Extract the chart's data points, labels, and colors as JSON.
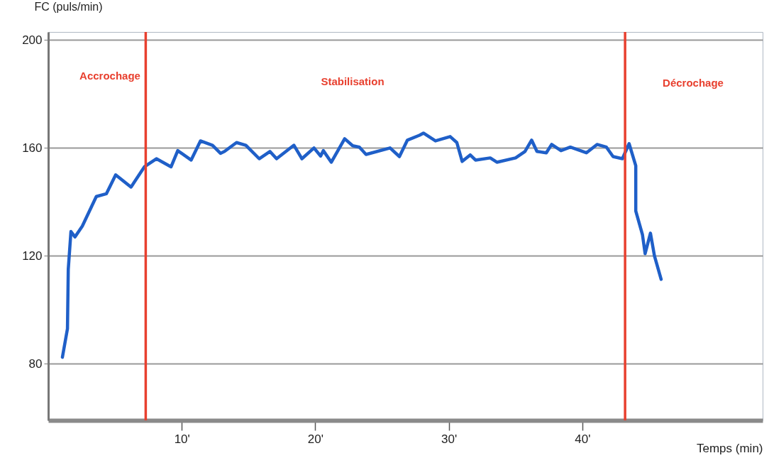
{
  "chart_data": {
    "type": "line",
    "xlabel": "Temps (min)",
    "ylabel": "FC (puls/min)",
    "xlim": [
      0,
      53.5
    ],
    "ylim": [
      59,
      203
    ],
    "xticks": [
      {
        "value": 10,
        "label": "10'"
      },
      {
        "value": 20,
        "label": "20'"
      },
      {
        "value": 30,
        "label": "30'"
      },
      {
        "value": 40,
        "label": "40'"
      }
    ],
    "yticks": [
      80,
      120,
      160,
      200
    ],
    "grid": "y",
    "marker": "none",
    "line_style": "solid",
    "x": [
      1.06,
      1.44,
      1.5,
      1.7,
      2.0,
      2.55,
      3.6,
      4.35,
      5.05,
      6.2,
      7.2,
      8.1,
      9.2,
      9.7,
      10.7,
      11.4,
      12.3,
      12.9,
      13.2,
      14.1,
      14.8,
      15.8,
      16.6,
      17.1,
      18.4,
      19.0,
      19.9,
      20.4,
      20.6,
      21.2,
      22.2,
      22.8,
      23.3,
      23.8,
      25.6,
      26.3,
      26.9,
      27.8,
      28.1,
      29.0,
      30.1,
      30.6,
      31.0,
      31.6,
      32.0,
      33.1,
      33.6,
      35.0,
      35.7,
      36.2,
      36.6,
      37.3,
      37.7,
      38.4,
      39.1,
      40.3,
      41.1,
      41.8,
      42.3,
      43.0,
      43.5,
      44.0,
      44.0,
      44.5,
      44.7,
      45.1,
      45.4,
      45.9
    ],
    "series": [
      {
        "color": "#1f5fc8",
        "values": [
          82.4,
          93,
          115,
          129,
          127,
          131,
          142,
          143,
          150,
          145.5,
          153,
          156,
          153,
          159,
          155.5,
          162.6,
          161,
          158,
          158.7,
          162,
          161,
          156,
          158.7,
          156,
          161,
          156,
          160,
          157,
          159,
          154.7,
          163.4,
          160.8,
          160.3,
          157.6,
          160,
          156.8,
          162.9,
          164.7,
          165.5,
          162.6,
          164.2,
          162,
          155,
          157.4,
          155.5,
          156.3,
          154.7,
          156.3,
          158.7,
          162.9,
          158.7,
          158.2,
          161.3,
          159,
          160.3,
          158.2,
          161.3,
          160.3,
          156.8,
          156,
          161.6,
          153.4,
          136.6,
          127.9,
          120.8,
          128.4,
          120,
          111.3
        ]
      }
    ],
    "ref_lines": [
      {
        "axis": "x",
        "value": 7.3,
        "color": "#e8402f"
      },
      {
        "axis": "x",
        "value": 43.2,
        "color": "#e8402f"
      }
    ],
    "annotations": [
      "Accrochage",
      "Stabilisation",
      "Décrochage"
    ]
  }
}
